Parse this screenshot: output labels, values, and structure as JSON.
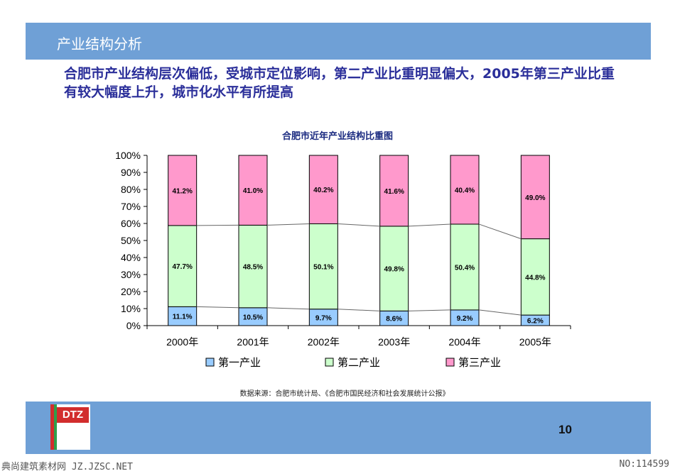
{
  "slide": {
    "title": "产业结构分析",
    "headline": "合肥市产业结构层次偏低，受城市定位影响，第二产业比重明显偏大，2005年第三产业比重有较大幅度上升，城市化水平有所提高",
    "source": "数据来源：合肥市统计局、《合肥市国民经济和社会发展统计公报》",
    "page_number": "10",
    "logo_text": "DTZ",
    "watermark_left": "典尚建筑素材网 JZ.JZSC.NET",
    "watermark_right": "NO:114599"
  },
  "chart_data": {
    "type": "bar",
    "stacked": true,
    "percent": true,
    "title": "合肥市近年产业结构比重图",
    "categories": [
      "2000年",
      "2001年",
      "2002年",
      "2003年",
      "2004年",
      "2005年"
    ],
    "series": [
      {
        "name": "第一产业",
        "values": [
          11.1,
          10.5,
          9.7,
          8.6,
          9.2,
          6.2
        ],
        "labels": [
          "11.1%",
          "10.5%",
          "9.7%",
          "8.6%",
          "9.2%",
          "6.2%"
        ],
        "color": "#99ccff"
      },
      {
        "name": "第二产业",
        "values": [
          47.7,
          48.5,
          50.1,
          49.8,
          50.4,
          44.8
        ],
        "labels": [
          "47.7%",
          "48.5%",
          "50.1%",
          "49.8%",
          "50.4%",
          "44.8%"
        ],
        "color": "#ccffcc"
      },
      {
        "name": "第三产业",
        "values": [
          41.2,
          41.0,
          40.2,
          41.6,
          40.4,
          49.0
        ],
        "labels": [
          "41.2%",
          "41.0%",
          "40.2%",
          "41.6%",
          "40.4%",
          "49.0%"
        ],
        "color": "#ff99cc"
      }
    ],
    "yticks": [
      "0%",
      "10%",
      "20%",
      "30%",
      "40%",
      "50%",
      "60%",
      "70%",
      "80%",
      "90%",
      "100%"
    ],
    "ylim": [
      0,
      100
    ],
    "grid": false,
    "legend": "bottom",
    "series_lines": true
  }
}
